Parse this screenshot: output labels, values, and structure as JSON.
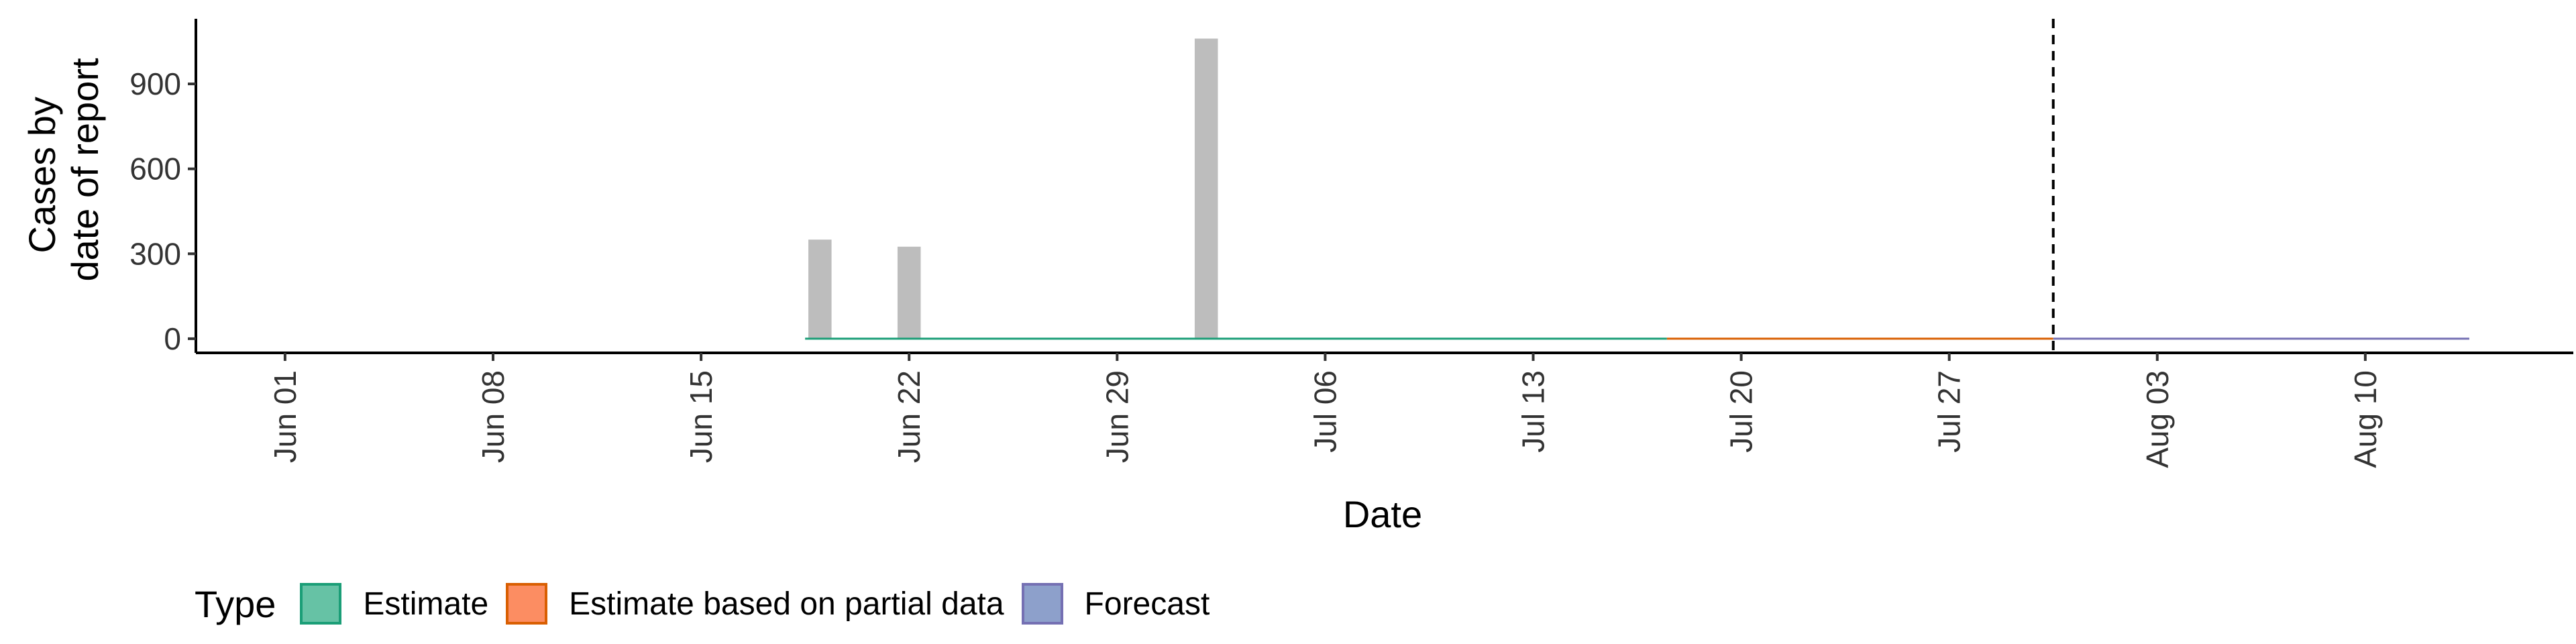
{
  "chart_data": {
    "type": "bar",
    "xlabel": "Date",
    "ylabel": [
      "Cases by",
      "date of report"
    ],
    "x_ticks": [
      "Jun 01",
      "Jun 08",
      "Jun 15",
      "Jun 22",
      "Jun 29",
      "Jul 06",
      "Jul 13",
      "Jul 20",
      "Jul 27",
      "Aug 03",
      "Aug 10"
    ],
    "x_tick_dates": [
      "2020-06-01",
      "2020-06-08",
      "2020-06-15",
      "2020-06-22",
      "2020-06-29",
      "2020-07-06",
      "2020-07-13",
      "2020-07-20",
      "2020-07-27",
      "2020-08-03",
      "2020-08-10"
    ],
    "xlim": [
      "2020-05-29",
      "2020-08-17"
    ],
    "y_ticks": [
      0,
      300,
      600,
      900
    ],
    "ylim": [
      -50,
      1130
    ],
    "reported_cases": [
      {
        "date": "2020-06-19",
        "value": 350
      },
      {
        "date": "2020-06-22",
        "value": 325
      },
      {
        "date": "2020-07-02",
        "value": 1060
      }
    ],
    "series": [
      {
        "name": "Estimate",
        "color": "#1b9e77",
        "fill": "#66c2a5",
        "start": "2020-06-19",
        "end": "2020-07-17",
        "value": 0
      },
      {
        "name": "Estimate based on partial data",
        "color": "#d95f02",
        "fill": "#fc8d62",
        "start": "2020-07-18",
        "end": "2020-07-30",
        "value": 0
      },
      {
        "name": "Forecast",
        "color": "#7570b3",
        "fill": "#8da0cb",
        "start": "2020-07-31",
        "end": "2020-08-13",
        "value": 0
      }
    ],
    "vline_date": "2020-07-30",
    "legend_title": "Type",
    "legend_position": "bottom-left",
    "grid": false,
    "bar_color": "#bdbdbd"
  }
}
